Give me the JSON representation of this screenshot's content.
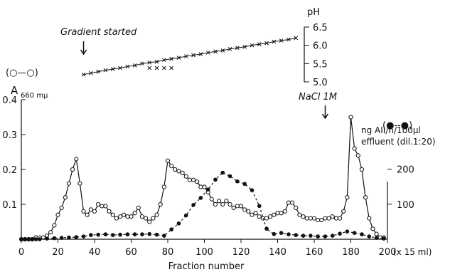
{
  "chart_data": {
    "type": "line",
    "xlabel": "Fraction number",
    "x_unit": "(x 15 ml)",
    "x_ticks": [
      "0",
      "20",
      "40",
      "60",
      "80",
      "100",
      "120",
      "140",
      "160",
      "180",
      "200"
    ],
    "x_tick_values": [
      0,
      20,
      40,
      60,
      80,
      100,
      120,
      140,
      160,
      180,
      200
    ],
    "xlim": [
      0,
      200
    ],
    "left_axis": {
      "label": "A",
      "label_sub": "660 mμ",
      "ylim": [
        0,
        0.4
      ],
      "ticks": [
        "0.1",
        "0.2",
        "0.3",
        "0.4"
      ],
      "tick_values": [
        0.1,
        0.2,
        0.3,
        0.4
      ]
    },
    "right_axis": {
      "label_line1": "ng AII/h/100µl",
      "label_line2": "effluent (dil.1:20)",
      "ylim": [
        0,
        250
      ],
      "ticks": [
        "100",
        "200"
      ],
      "tick_values": [
        100,
        200
      ]
    },
    "ph_axis": {
      "label": "pH",
      "ylim": [
        5.0,
        6.5
      ],
      "ticks": [
        "5.0",
        "5.5",
        "6.0",
        "6.5"
      ],
      "tick_values": [
        5.0,
        5.5,
        6.0,
        6.5
      ]
    },
    "series": [
      {
        "legend": "(○—○)",
        "style": "solid-open-circles",
        "axis": "left",
        "x": [
          0,
          2,
          4,
          6,
          8,
          10,
          12,
          14,
          16,
          18,
          20,
          22,
          24,
          26,
          28,
          30,
          32,
          34,
          36,
          38,
          40,
          42,
          44,
          46,
          48,
          50,
          52,
          54,
          56,
          58,
          60,
          62,
          64,
          66,
          68,
          70,
          72,
          74,
          76,
          78,
          80,
          82,
          84,
          86,
          88,
          90,
          92,
          94,
          96,
          98,
          100,
          102,
          104,
          106,
          108,
          110,
          112,
          114,
          116,
          118,
          120,
          122,
          124,
          126,
          128,
          130,
          132,
          134,
          136,
          138,
          140,
          142,
          144,
          146,
          148,
          150,
          152,
          154,
          156,
          158,
          160,
          162,
          164,
          166,
          168,
          170,
          172,
          174,
          176,
          178,
          180,
          182,
          184,
          186,
          188,
          190,
          192,
          194,
          196,
          198
        ],
        "y": [
          0.0,
          0.0,
          0.0,
          0.0,
          0.005,
          0.005,
          0.005,
          0.01,
          0.02,
          0.04,
          0.07,
          0.09,
          0.12,
          0.16,
          0.2,
          0.23,
          0.16,
          0.08,
          0.07,
          0.085,
          0.08,
          0.1,
          0.095,
          0.095,
          0.08,
          0.07,
          0.06,
          0.065,
          0.07,
          0.065,
          0.065,
          0.075,
          0.09,
          0.065,
          0.06,
          0.05,
          0.06,
          0.07,
          0.1,
          0.15,
          0.225,
          0.21,
          0.2,
          0.195,
          0.19,
          0.18,
          0.17,
          0.17,
          0.165,
          0.15,
          0.15,
          0.135,
          0.115,
          0.1,
          0.11,
          0.1,
          0.11,
          0.1,
          0.09,
          0.095,
          0.095,
          0.085,
          0.08,
          0.07,
          0.075,
          0.065,
          0.06,
          0.06,
          0.065,
          0.07,
          0.075,
          0.075,
          0.08,
          0.105,
          0.105,
          0.09,
          0.07,
          0.065,
          0.06,
          0.06,
          0.06,
          0.055,
          0.055,
          0.06,
          0.06,
          0.065,
          0.06,
          0.06,
          0.08,
          0.12,
          0.35,
          0.26,
          0.24,
          0.2,
          0.12,
          0.06,
          0.03,
          0.015,
          0.005,
          0.005
        ]
      },
      {
        "legend": "(●--●)",
        "style": "dashed-filled-circles",
        "axis": "right",
        "x": [
          0,
          2,
          4,
          6,
          8,
          10,
          14,
          18,
          22,
          26,
          30,
          34,
          38,
          42,
          46,
          50,
          54,
          58,
          62,
          66,
          70,
          74,
          78,
          82,
          86,
          90,
          94,
          98,
          102,
          106,
          110,
          114,
          118,
          122,
          126,
          130,
          134,
          138,
          142,
          146,
          150,
          154,
          158,
          162,
          166,
          170,
          174,
          178,
          182,
          186,
          190,
          194,
          198
        ],
        "y": [
          0,
          0,
          0,
          0,
          0,
          0,
          2,
          3,
          4,
          5,
          6,
          8,
          12,
          13,
          14,
          12,
          13,
          14,
          14,
          14,
          15,
          13,
          10,
          28,
          45,
          68,
          98,
          118,
          142,
          170,
          190,
          180,
          165,
          158,
          140,
          95,
          30,
          15,
          18,
          14,
          12,
          10,
          10,
          8,
          8,
          10,
          16,
          22,
          18,
          14,
          8,
          4,
          2
        ]
      },
      {
        "legend": "x — x",
        "style": "ph-crosses",
        "axis": "ph",
        "x": [
          34,
          38,
          42,
          46,
          50,
          54,
          58,
          62,
          66,
          70,
          74,
          78,
          82,
          86,
          90,
          94,
          98,
          102,
          106,
          110,
          114,
          118,
          122,
          126,
          130,
          134,
          138,
          142,
          146,
          150
        ],
        "y": [
          5.2,
          5.24,
          5.28,
          5.32,
          5.35,
          5.38,
          5.42,
          5.45,
          5.5,
          5.53,
          5.55,
          5.6,
          5.63,
          5.66,
          5.7,
          5.73,
          5.76,
          5.8,
          5.83,
          5.86,
          5.9,
          5.93,
          5.96,
          6.0,
          6.03,
          6.06,
          6.1,
          6.13,
          6.16,
          6.2
        ]
      }
    ],
    "ph_extra_marks": {
      "x": [
        70,
        74,
        78,
        82
      ],
      "y": [
        5.38,
        5.38,
        5.38,
        5.38
      ]
    },
    "annotations": {
      "gradient": "Gradient started",
      "gradient_x": 34,
      "nacl": "NaCl 1M",
      "nacl_x": 166
    }
  }
}
